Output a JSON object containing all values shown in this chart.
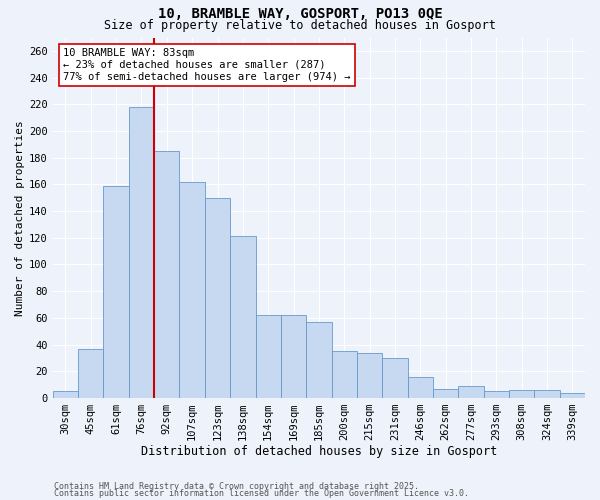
{
  "title1": "10, BRAMBLE WAY, GOSPORT, PO13 0QE",
  "title2": "Size of property relative to detached houses in Gosport",
  "xlabel": "Distribution of detached houses by size in Gosport",
  "ylabel": "Number of detached properties",
  "categories": [
    "30sqm",
    "45sqm",
    "61sqm",
    "76sqm",
    "92sqm",
    "107sqm",
    "123sqm",
    "138sqm",
    "154sqm",
    "169sqm",
    "185sqm",
    "200sqm",
    "215sqm",
    "231sqm",
    "246sqm",
    "262sqm",
    "277sqm",
    "293sqm",
    "308sqm",
    "324sqm",
    "339sqm"
  ],
  "values": [
    5,
    37,
    159,
    218,
    185,
    162,
    150,
    121,
    62,
    62,
    57,
    35,
    34,
    30,
    16,
    7,
    9,
    5,
    6,
    6,
    4
  ],
  "bar_color": "#c6d9f1",
  "bar_edge_color": "#6699cc",
  "vline_color": "#cc0000",
  "vline_x_index": 3,
  "annotation_line1": "10 BRAMBLE WAY: 83sqm",
  "annotation_line2": "← 23% of detached houses are smaller (287)",
  "annotation_line3": "77% of semi-detached houses are larger (974) →",
  "annotation_box_facecolor": "#ffffff",
  "annotation_box_edgecolor": "#cc0000",
  "ylim": [
    0,
    270
  ],
  "yticks": [
    0,
    20,
    40,
    60,
    80,
    100,
    120,
    140,
    160,
    180,
    200,
    220,
    240,
    260
  ],
  "footer_line1": "Contains HM Land Registry data © Crown copyright and database right 2025.",
  "footer_line2": "Contains public sector information licensed under the Open Government Licence v3.0.",
  "background_color": "#eef2fa",
  "grid_color": "#ffffff",
  "title1_fontsize": 10,
  "title2_fontsize": 8.5,
  "axis_fontsize": 7.5,
  "ylabel_fontsize": 8,
  "xlabel_fontsize": 8.5,
  "footer_fontsize": 6,
  "annotation_fontsize": 7.5
}
